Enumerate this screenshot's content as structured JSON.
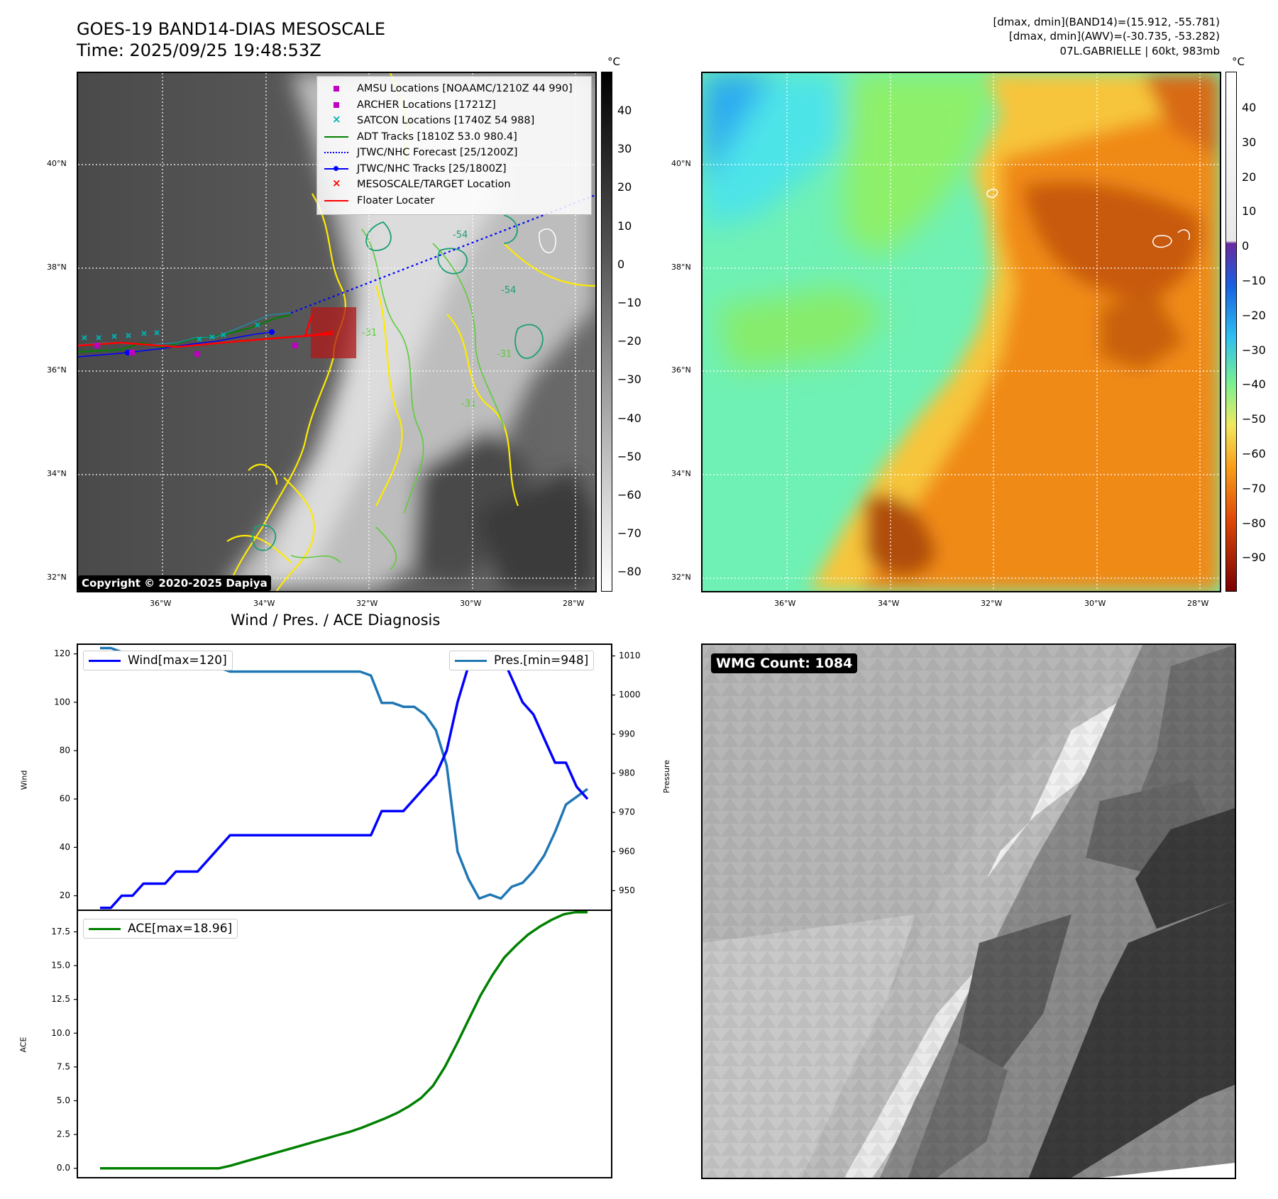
{
  "header": {
    "title_line1": "GOES-19 BAND14-DIAS MESOSCALE",
    "title_line2": "Time: 2025/09/25 19:48:53Z",
    "info_line1": "[dmax, dmin](BAND14)=(15.912, -55.781)",
    "info_line2": "[dmax, dmin](AWV)=(-30.735, -53.282)",
    "info_line3": "07L.GABRIELLE | 60kt, 983mb"
  },
  "map_left": {
    "lat_labels": [
      "40°N",
      "38°N",
      "36°N",
      "34°N",
      "32°N"
    ],
    "lon_labels": [
      "36°W",
      "34°W",
      "32°W",
      "30°W",
      "28°W"
    ],
    "colorbar_unit": "°C",
    "colorbar_ticks": [
      "40",
      "30",
      "20",
      "10",
      "0",
      "−10",
      "−20",
      "−30",
      "−40",
      "−50",
      "−60",
      "−70",
      "−80"
    ],
    "copyright": "Copyright © 2020-2025 Dapiya",
    "contour_labels": [
      "-54",
      "-31",
      "-31",
      "-31",
      "-54"
    ],
    "legend": [
      {
        "label": "AMSU Locations [NOAAMC/1210Z 44 990]",
        "symbol": "square",
        "color": "#c000c0"
      },
      {
        "label": "ARCHER Locations [1721Z]",
        "symbol": "square",
        "color": "#c000c0"
      },
      {
        "label": "SATCON Locations [1740Z 54 988]",
        "symbol": "x",
        "color": "#00b0b0"
      },
      {
        "label": "ADT Tracks [1810Z 53.0 980.4]",
        "symbol": "line",
        "color": "#008000"
      },
      {
        "label": "JTWC/NHC Forecast [25/1200Z]",
        "symbol": "dotted",
        "color": "#0000ff"
      },
      {
        "label": "JTWC/NHC Tracks [25/1800Z]",
        "symbol": "line-dot",
        "color": "#0000ff"
      },
      {
        "label": "MESOSCALE/TARGET Location",
        "symbol": "x",
        "color": "#ff0000"
      },
      {
        "label": "Floater Locater",
        "symbol": "line",
        "color": "#ff0000"
      }
    ]
  },
  "map_right": {
    "lat_labels": [
      "40°N",
      "38°N",
      "36°N",
      "34°N",
      "32°N"
    ],
    "lon_labels": [
      "36°W",
      "34°W",
      "32°W",
      "30°W",
      "28°W"
    ],
    "colorbar_unit": "°C",
    "colorbar_ticks": [
      "40",
      "30",
      "20",
      "10",
      "0",
      "−10",
      "−20",
      "−30",
      "−40",
      "−50",
      "−60",
      "−70",
      "−80",
      "−90"
    ]
  },
  "wmg_panel": {
    "label": "WMG Count: 1084"
  },
  "chart_data": [
    {
      "type": "line",
      "title": "Wind / Pres. / ACE Diagnosis",
      "ylabel": "Wind",
      "y2label": "Pressure",
      "ylim": [
        14,
        124
      ],
      "y2lim": [
        945,
        1013
      ],
      "yticks": [
        "20",
        "40",
        "60",
        "80",
        "100",
        "120"
      ],
      "y2ticks": [
        "950",
        "960",
        "970",
        "980",
        "990",
        "1000",
        "1010"
      ],
      "series": [
        {
          "name": "Wind[max=120]",
          "axis": "left",
          "color": "#0000ff",
          "values": [
            15,
            15,
            20,
            20,
            25,
            25,
            25,
            30,
            30,
            30,
            35,
            40,
            45,
            45,
            45,
            45,
            45,
            45,
            45,
            45,
            45,
            45,
            45,
            45,
            45,
            45,
            55,
            55,
            55,
            60,
            65,
            70,
            80,
            100,
            115,
            120,
            120,
            120,
            110,
            100,
            95,
            85,
            75,
            75,
            65,
            60
          ]
        },
        {
          "name": "Pres.[min=948]",
          "axis": "right",
          "color": "#1f77b4",
          "values": [
            1012,
            1012,
            1011,
            1010,
            1010,
            1009,
            1008,
            1008,
            1008,
            1008,
            1007,
            1007,
            1006,
            1006,
            1006,
            1006,
            1006,
            1006,
            1006,
            1006,
            1006,
            1006,
            1006,
            1006,
            1006,
            1005,
            998,
            998,
            997,
            997,
            995,
            991,
            982,
            960,
            953,
            948,
            949,
            948,
            951,
            952,
            955,
            959,
            965,
            972,
            974,
            976
          ]
        }
      ]
    },
    {
      "type": "line",
      "ylabel": "ACE",
      "ylim": [
        -0.7,
        19.1
      ],
      "yticks": [
        "0.0",
        "2.5",
        "5.0",
        "7.5",
        "10.0",
        "12.5",
        "15.0",
        "17.5"
      ],
      "series": [
        {
          "name": "ACE[max=18.96]",
          "color": "#008000",
          "values": [
            0,
            0,
            0,
            0,
            0,
            0,
            0,
            0,
            0,
            0,
            0,
            0.2,
            0.45,
            0.7,
            0.95,
            1.2,
            1.45,
            1.7,
            1.95,
            2.2,
            2.45,
            2.7,
            3.0,
            3.35,
            3.7,
            4.1,
            4.6,
            5.2,
            6.1,
            7.5,
            9.2,
            11.0,
            12.8,
            14.3,
            15.6,
            16.5,
            17.3,
            17.9,
            18.4,
            18.8,
            18.96,
            18.96
          ]
        }
      ]
    }
  ]
}
